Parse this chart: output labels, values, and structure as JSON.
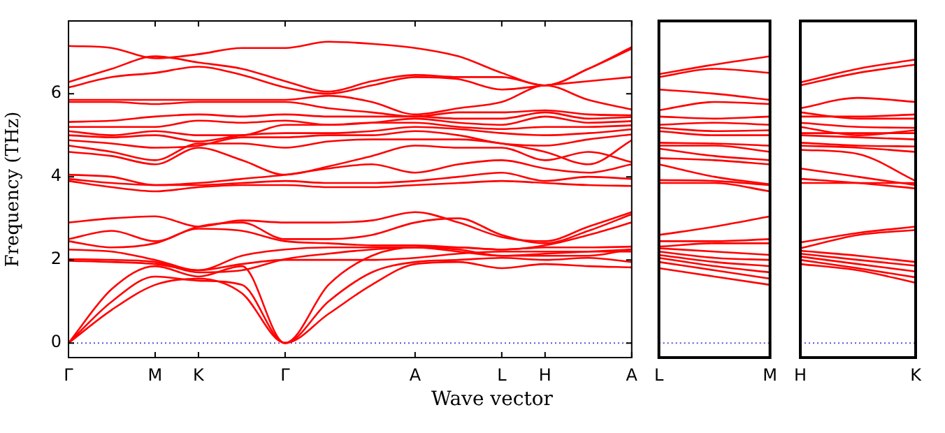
{
  "chart_data": [
    {
      "type": "line",
      "ylabel": "Frequency (THz)",
      "xlabel": "Wave vector",
      "legend": false,
      "grid": false,
      "marker": "none",
      "categories": [
        "Γ",
        null,
        "M",
        "K",
        null,
        "Γ",
        null,
        null,
        "A",
        null,
        "L",
        "H",
        null,
        "A"
      ],
      "ylim": [
        -0.35,
        7.75
      ],
      "yticks": [
        0,
        2,
        4,
        6
      ],
      "ref_lines": [
        {
          "axis": "y",
          "value": 0,
          "color": "#5555cc",
          "line_style": "dotted"
        }
      ],
      "series": [
        {
          "color": "#ff0000",
          "values": [
            0,
            0.8,
            1.4,
            1.55,
            1.2,
            0,
            0.7,
            1.4,
            1.9,
            1.95,
            1.8,
            1.9,
            1.85,
            1.82
          ]
        },
        {
          "color": "#ff0000",
          "values": [
            0,
            1.0,
            1.6,
            1.5,
            1.4,
            0,
            1.0,
            1.7,
            1.95,
            2.0,
            2.05,
            2.0,
            2.05,
            1.95
          ]
        },
        {
          "color": "#ff0000",
          "values": [
            0,
            1.3,
            1.85,
            1.6,
            1.85,
            0,
            1.4,
            2.1,
            2.3,
            2.25,
            2.1,
            2.15,
            2.2,
            2.25
          ]
        },
        {
          "color": "#ff0000",
          "values": [
            1.98,
            1.95,
            1.9,
            1.75,
            1.9,
            2.0,
            2.0,
            2.0,
            2.05,
            2.15,
            2.2,
            2.2,
            2.2,
            2.2
          ]
        },
        {
          "color": "#ff0000",
          "values": [
            2.02,
            2.0,
            1.95,
            1.7,
            1.75,
            2.02,
            2.15,
            2.25,
            2.3,
            2.3,
            2.25,
            2.3,
            2.3,
            2.32
          ]
        },
        {
          "color": "#ff0000",
          "values": [
            2.25,
            2.2,
            2.0,
            1.75,
            2.1,
            2.25,
            2.3,
            2.3,
            2.3,
            2.2,
            2.1,
            2.1,
            2.1,
            2.26
          ]
        },
        {
          "color": "#ff0000",
          "values": [
            2.45,
            2.3,
            2.4,
            2.75,
            2.7,
            2.45,
            2.4,
            2.35,
            2.35,
            2.3,
            2.25,
            2.35,
            2.6,
            2.9
          ]
        },
        {
          "color": "#ff0000",
          "values": [
            2.5,
            2.7,
            2.45,
            2.8,
            2.9,
            2.5,
            2.5,
            2.6,
            2.9,
            3.0,
            2.6,
            2.4,
            2.7,
            3.1
          ]
        },
        {
          "color": "#ff0000",
          "values": [
            2.9,
            3.0,
            3.05,
            2.8,
            2.95,
            2.9,
            2.9,
            2.95,
            3.15,
            2.9,
            2.55,
            2.45,
            2.8,
            3.15
          ]
        },
        {
          "color": "#ff0000",
          "values": [
            3.9,
            3.75,
            3.65,
            3.75,
            3.8,
            3.8,
            3.75,
            3.75,
            3.8,
            3.85,
            3.9,
            3.85,
            3.8,
            3.78
          ]
        },
        {
          "color": "#ff0000",
          "values": [
            3.95,
            3.85,
            3.8,
            3.8,
            3.85,
            3.9,
            3.85,
            3.85,
            3.9,
            4.0,
            4.1,
            3.9,
            4.0,
            3.95
          ]
        },
        {
          "color": "#ff0000",
          "values": [
            4.05,
            4.0,
            3.8,
            3.85,
            3.95,
            4.05,
            4.2,
            4.3,
            4.1,
            4.3,
            4.4,
            4.2,
            4.1,
            4.3
          ]
        },
        {
          "color": "#ff0000",
          "values": [
            4.6,
            4.5,
            4.3,
            4.7,
            4.4,
            4.05,
            4.25,
            4.5,
            4.75,
            4.7,
            4.7,
            4.4,
            4.6,
            4.35
          ]
        },
        {
          "color": "#ff0000",
          "values": [
            4.75,
            4.6,
            4.4,
            4.8,
            4.8,
            4.7,
            4.85,
            4.9,
            4.9,
            4.9,
            4.8,
            4.6,
            4.3,
            4.88
          ]
        },
        {
          "color": "#ff0000",
          "values": [
            4.88,
            4.8,
            4.7,
            4.75,
            4.95,
            4.95,
            5.0,
            5.0,
            5.1,
            5.0,
            4.8,
            4.75,
            4.9,
            5.02
          ]
        },
        {
          "color": "#ff0000",
          "values": [
            5.0,
            4.95,
            5.0,
            4.85,
            5.0,
            5.05,
            5.05,
            5.1,
            5.2,
            5.15,
            5.05,
            5.0,
            5.05,
            5.14
          ]
        },
        {
          "color": "#ff0000",
          "values": [
            5.1,
            5.0,
            5.1,
            5.0,
            5.0,
            5.25,
            5.25,
            5.3,
            5.3,
            5.2,
            5.15,
            5.2,
            5.2,
            5.24
          ]
        },
        {
          "color": "#ff0000",
          "values": [
            5.2,
            5.2,
            5.2,
            5.35,
            5.3,
            5.35,
            5.25,
            5.3,
            5.4,
            5.3,
            5.25,
            5.45,
            5.3,
            5.34
          ]
        },
        {
          "color": "#ff0000",
          "values": [
            5.32,
            5.35,
            5.45,
            5.5,
            5.45,
            5.5,
            5.45,
            5.45,
            5.45,
            5.4,
            5.4,
            5.55,
            5.4,
            5.44
          ]
        },
        {
          "color": "#ff0000",
          "values": [
            5.8,
            5.8,
            5.75,
            5.8,
            5.8,
            5.8,
            5.65,
            5.55,
            5.45,
            5.55,
            5.55,
            5.6,
            5.5,
            5.48
          ]
        },
        {
          "color": "#ff0000",
          "values": [
            5.85,
            5.85,
            5.85,
            5.85,
            5.85,
            5.85,
            5.95,
            5.8,
            5.5,
            5.65,
            5.8,
            6.2,
            5.85,
            5.62
          ]
        },
        {
          "color": "#ff0000",
          "values": [
            6.15,
            6.4,
            6.5,
            6.65,
            6.45,
            6.15,
            6.0,
            6.2,
            6.4,
            6.35,
            6.1,
            6.2,
            6.3,
            6.4
          ]
        },
        {
          "color": "#ff0000",
          "values": [
            6.28,
            6.6,
            6.9,
            6.75,
            6.6,
            6.3,
            6.05,
            6.3,
            6.45,
            6.4,
            6.4,
            6.2,
            6.6,
            7.08
          ]
        },
        {
          "color": "#ff0000",
          "values": [
            7.15,
            7.1,
            6.85,
            6.95,
            7.1,
            7.1,
            7.25,
            7.2,
            7.1,
            6.9,
            6.5,
            6.2,
            6.6,
            7.12
          ]
        }
      ]
    },
    {
      "type": "line",
      "legend": false,
      "grid": false,
      "marker": "none",
      "tick_labels": "x",
      "categories": [
        "L",
        null,
        "M"
      ],
      "ylim": [
        -0.35,
        7.75
      ],
      "ref_lines": [
        {
          "axis": "y",
          "value": 0,
          "color": "#5555cc",
          "line_style": "dotted"
        }
      ],
      "series": [
        {
          "color": "#ff0000",
          "values": [
            1.8,
            1.6,
            1.4
          ]
        },
        {
          "color": "#ff0000",
          "values": [
            1.95,
            1.75,
            1.55
          ]
        },
        {
          "color": "#ff0000",
          "values": [
            2.05,
            1.85,
            1.7
          ]
        },
        {
          "color": "#ff0000",
          "values": [
            2.12,
            1.95,
            1.85
          ]
        },
        {
          "color": "#ff0000",
          "values": [
            2.2,
            2.05,
            2.0
          ]
        },
        {
          "color": "#ff0000",
          "values": [
            2.28,
            2.2,
            2.12
          ]
        },
        {
          "color": "#ff0000",
          "values": [
            2.32,
            2.4,
            2.4
          ]
        },
        {
          "color": "#ff0000",
          "values": [
            2.45,
            2.45,
            2.5
          ]
        },
        {
          "color": "#ff0000",
          "values": [
            2.6,
            2.8,
            3.05
          ]
        },
        {
          "color": "#ff0000",
          "values": [
            3.85,
            3.85,
            3.65
          ]
        },
        {
          "color": "#ff0000",
          "values": [
            3.92,
            3.9,
            3.8
          ]
        },
        {
          "color": "#ff0000",
          "values": [
            4.3,
            4.0,
            3.82
          ]
        },
        {
          "color": "#ff0000",
          "values": [
            4.45,
            4.4,
            4.3
          ]
        },
        {
          "color": "#ff0000",
          "values": [
            4.68,
            4.5,
            4.4
          ]
        },
        {
          "color": "#ff0000",
          "values": [
            4.75,
            4.75,
            4.6
          ]
        },
        {
          "color": "#ff0000",
          "values": [
            4.82,
            4.8,
            4.75
          ]
        },
        {
          "color": "#ff0000",
          "values": [
            5.1,
            5.0,
            5.0
          ]
        },
        {
          "color": "#ff0000",
          "values": [
            5.18,
            5.1,
            5.12
          ]
        },
        {
          "color": "#ff0000",
          "values": [
            5.25,
            5.3,
            5.25
          ]
        },
        {
          "color": "#ff0000",
          "values": [
            5.45,
            5.4,
            5.45
          ]
        },
        {
          "color": "#ff0000",
          "values": [
            5.6,
            5.8,
            5.75
          ]
        },
        {
          "color": "#ff0000",
          "values": [
            6.1,
            6.0,
            5.85
          ]
        },
        {
          "color": "#ff0000",
          "values": [
            6.4,
            6.6,
            6.5
          ]
        },
        {
          "color": "#ff0000",
          "values": [
            6.47,
            6.7,
            6.9
          ]
        }
      ]
    },
    {
      "type": "line",
      "legend": false,
      "grid": false,
      "marker": "none",
      "tick_labels": "x",
      "categories": [
        "H",
        null,
        "K"
      ],
      "ylim": [
        -0.35,
        7.75
      ],
      "ref_lines": [
        {
          "axis": "y",
          "value": 0,
          "color": "#5555cc",
          "line_style": "dotted"
        }
      ],
      "series": [
        {
          "color": "#ff0000",
          "values": [
            1.9,
            1.75,
            1.45
          ]
        },
        {
          "color": "#ff0000",
          "values": [
            2.0,
            1.8,
            1.58
          ]
        },
        {
          "color": "#ff0000",
          "values": [
            2.08,
            1.9,
            1.72
          ]
        },
        {
          "color": "#ff0000",
          "values": [
            2.15,
            2.0,
            1.86
          ]
        },
        {
          "color": "#ff0000",
          "values": [
            2.22,
            2.1,
            1.95
          ]
        },
        {
          "color": "#ff0000",
          "values": [
            2.28,
            2.6,
            2.72
          ]
        },
        {
          "color": "#ff0000",
          "values": [
            2.42,
            2.65,
            2.8
          ]
        },
        {
          "color": "#ff0000",
          "values": [
            3.85,
            3.85,
            3.85
          ]
        },
        {
          "color": "#ff0000",
          "values": [
            3.95,
            3.85,
            3.72
          ]
        },
        {
          "color": "#ff0000",
          "values": [
            4.2,
            4.0,
            3.8
          ]
        },
        {
          "color": "#ff0000",
          "values": [
            4.65,
            4.55,
            3.9
          ]
        },
        {
          "color": "#ff0000",
          "values": [
            4.75,
            4.7,
            4.6
          ]
        },
        {
          "color": "#ff0000",
          "values": [
            4.82,
            4.75,
            4.73
          ]
        },
        {
          "color": "#ff0000",
          "values": [
            5.0,
            4.95,
            4.9
          ]
        },
        {
          "color": "#ff0000",
          "values": [
            5.05,
            5.05,
            5.05
          ]
        },
        {
          "color": "#ff0000",
          "values": [
            5.2,
            5.0,
            5.12
          ]
        },
        {
          "color": "#ff0000",
          "values": [
            5.3,
            5.2,
            5.18
          ]
        },
        {
          "color": "#ff0000",
          "values": [
            5.45,
            5.45,
            5.5
          ]
        },
        {
          "color": "#ff0000",
          "values": [
            5.55,
            5.4,
            5.4
          ]
        },
        {
          "color": "#ff0000",
          "values": [
            5.65,
            5.9,
            5.8
          ]
        },
        {
          "color": "#ff0000",
          "values": [
            6.2,
            6.5,
            6.7
          ]
        },
        {
          "color": "#ff0000",
          "values": [
            6.27,
            6.6,
            6.82
          ]
        }
      ]
    }
  ]
}
